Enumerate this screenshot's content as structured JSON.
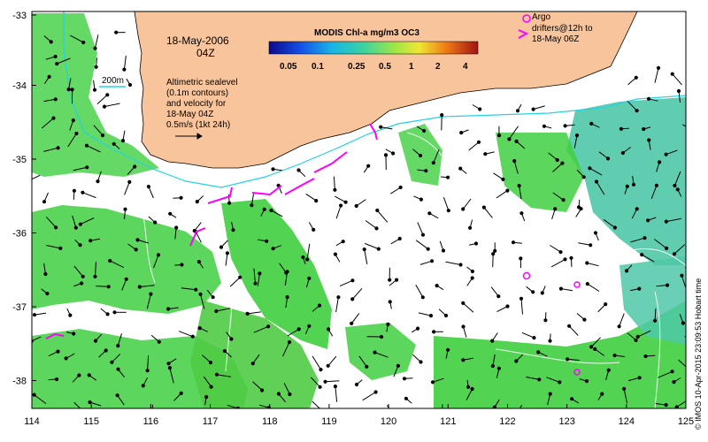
{
  "map": {
    "date": "18-May-2006",
    "time": "04Z",
    "colorbar": {
      "title": "MODIS Chl-a mg/m3 OC3",
      "ticks": [
        "0.05",
        "0.1",
        "0.25",
        "0.5",
        "1",
        "2",
        "4"
      ]
    },
    "isobath_label": "200m",
    "sealevel_note": [
      "Altimetric sealevel",
      "(0.1m contours)",
      "and velocity for",
      "18-May 04Z",
      "0.5m/s (1kt 24h)"
    ],
    "argo_note": [
      "Argo",
      "drifters@12h to",
      "18-May 06Z"
    ],
    "x_ticks": [
      "114",
      "115",
      "116",
      "117",
      "118",
      "119",
      "120",
      "121",
      "122",
      "123",
      "124",
      "125"
    ],
    "y_ticks": [
      "-33",
      "-34",
      "-35",
      "-36",
      "-37",
      "-38"
    ],
    "credit": "© IMOS 10-Apr-2015 23:09:53 Hobart time",
    "colors": {
      "land": "#f8c49c",
      "water": "#ffffff",
      "chl_green": "#3fcf3f",
      "chl_cyan": "#4fc8a8",
      "argo": "#ff00ff",
      "isobath": "#22d3e6",
      "vector": "#000000"
    }
  }
}
